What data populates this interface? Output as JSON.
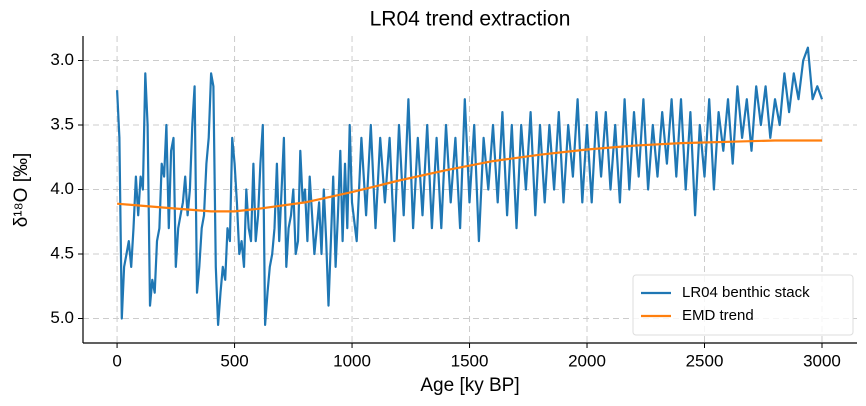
{
  "chart_data": {
    "type": "line",
    "title": "LR04 trend extraction",
    "xlabel": "Age [ky BP]",
    "ylabel": "δ¹⁸O [‰]",
    "xlim": [
      -145,
      3149
    ],
    "ylim": [
      5.19,
      2.81
    ],
    "xticks": [
      0,
      500,
      1000,
      1500,
      2000,
      2500,
      3000
    ],
    "yticks": [
      {
        "value": 3,
        "label": "3.0"
      },
      3.5,
      {
        "value": 4,
        "label": "4.0"
      },
      4.5,
      {
        "value": 5,
        "label": "5.0"
      }
    ],
    "grid": true,
    "legend": "lower right",
    "series": [
      {
        "name": "LR04 benthic stack",
        "color": "#1f77b4",
        "x": [
          0,
          10,
          20,
          30,
          40,
          50,
          60,
          70,
          80,
          90,
          100,
          110,
          120,
          130,
          140,
          150,
          160,
          170,
          180,
          190,
          200,
          210,
          220,
          230,
          240,
          250,
          260,
          270,
          280,
          290,
          300,
          310,
          320,
          330,
          340,
          350,
          360,
          370,
          380,
          390,
          400,
          410,
          420,
          430,
          440,
          450,
          460,
          470,
          480,
          490,
          500,
          510,
          520,
          530,
          540,
          550,
          560,
          570,
          580,
          590,
          600,
          610,
          620,
          630,
          640,
          650,
          660,
          670,
          680,
          690,
          700,
          710,
          720,
          730,
          740,
          750,
          760,
          770,
          780,
          790,
          800,
          810,
          820,
          830,
          840,
          850,
          860,
          870,
          880,
          890,
          900,
          910,
          920,
          930,
          940,
          950,
          960,
          970,
          980,
          990,
          1000,
          1020,
          1040,
          1060,
          1080,
          1100,
          1120,
          1140,
          1160,
          1180,
          1200,
          1220,
          1240,
          1260,
          1280,
          1300,
          1320,
          1340,
          1360,
          1380,
          1400,
          1420,
          1440,
          1460,
          1480,
          1500,
          1520,
          1540,
          1560,
          1580,
          1600,
          1620,
          1640,
          1660,
          1680,
          1700,
          1720,
          1740,
          1760,
          1780,
          1800,
          1820,
          1840,
          1860,
          1880,
          1900,
          1920,
          1940,
          1960,
          1980,
          2000,
          2020,
          2040,
          2060,
          2080,
          2100,
          2120,
          2140,
          2160,
          2180,
          2200,
          2220,
          2240,
          2260,
          2280,
          2300,
          2320,
          2340,
          2360,
          2380,
          2400,
          2420,
          2440,
          2460,
          2480,
          2500,
          2520,
          2540,
          2560,
          2580,
          2600,
          2620,
          2640,
          2660,
          2680,
          2700,
          2720,
          2740,
          2760,
          2780,
          2800,
          2820,
          2840,
          2860,
          2880,
          2900,
          2920,
          2940,
          2960,
          2980,
          3000
        ],
        "values": [
          3.23,
          3.6,
          5.0,
          4.6,
          4.5,
          4.4,
          4.6,
          4.3,
          3.9,
          4.2,
          3.9,
          4.0,
          3.1,
          3.5,
          4.9,
          4.7,
          4.8,
          4.4,
          4.3,
          3.8,
          3.9,
          3.5,
          4.3,
          3.7,
          3.6,
          4.6,
          4.3,
          4.2,
          4.1,
          3.9,
          4.2,
          4.0,
          3.5,
          3.2,
          4.8,
          4.6,
          4.3,
          4.2,
          3.8,
          3.6,
          3.1,
          3.2,
          4.6,
          5.05,
          4.8,
          4.6,
          4.7,
          4.3,
          4.4,
          3.6,
          3.8,
          4.1,
          4.5,
          4.4,
          4.6,
          4.0,
          4.3,
          4.4,
          3.8,
          4.4,
          4.2,
          3.8,
          3.5,
          5.05,
          4.8,
          4.6,
          4.5,
          4.3,
          3.8,
          4.4,
          4.0,
          3.6,
          4.6,
          4.3,
          4.2,
          4.0,
          4.5,
          4.4,
          3.7,
          4.1,
          4.0,
          4.4,
          3.9,
          4.2,
          4.5,
          4.3,
          4.1,
          4.5,
          4.0,
          4.4,
          4.9,
          4.4,
          3.9,
          4.6,
          4.2,
          3.7,
          4.4,
          3.8,
          4.3,
          3.5,
          4.1,
          4.4,
          3.6,
          4.2,
          3.5,
          4.3,
          3.6,
          4.1,
          3.6,
          4.4,
          3.5,
          4.2,
          3.3,
          4.3,
          3.6,
          4.2,
          3.5,
          4.3,
          3.6,
          4.3,
          3.5,
          4.1,
          3.6,
          4.3,
          3.3,
          4.1,
          3.5,
          4.4,
          3.6,
          4.0,
          3.5,
          4.1,
          3.4,
          4.2,
          3.5,
          4.3,
          3.5,
          4.0,
          3.4,
          4.2,
          3.5,
          4.1,
          3.5,
          4.0,
          3.4,
          4.1,
          3.5,
          3.9,
          3.3,
          4.1,
          3.5,
          4.1,
          3.4,
          3.9,
          3.4,
          4.0,
          3.5,
          4.1,
          3.3,
          4.0,
          3.4,
          3.9,
          3.3,
          4.0,
          3.5,
          3.9,
          3.4,
          3.8,
          3.3,
          3.9,
          3.3,
          4.0,
          3.4,
          4.2,
          3.5,
          3.9,
          3.3,
          4.0,
          3.4,
          3.7,
          3.3,
          3.8,
          3.2,
          3.6,
          3.3,
          3.7,
          3.2,
          3.5,
          3.2,
          3.6,
          3.3,
          3.5,
          3.1,
          3.4,
          3.1,
          3.3,
          3.0,
          2.9,
          3.3,
          3.2,
          3.3
        ]
      },
      {
        "name": "EMD trend",
        "color": "#ff7f0e",
        "x": [
          0,
          200,
          400,
          500,
          600,
          800,
          1000,
          1200,
          1400,
          1600,
          1800,
          2000,
          2200,
          2400,
          2600,
          2800,
          3000
        ],
        "values": [
          4.11,
          4.14,
          4.17,
          4.17,
          4.15,
          4.1,
          4.02,
          3.93,
          3.85,
          3.78,
          3.73,
          3.69,
          3.66,
          3.64,
          3.63,
          3.62,
          3.62
        ]
      }
    ]
  }
}
